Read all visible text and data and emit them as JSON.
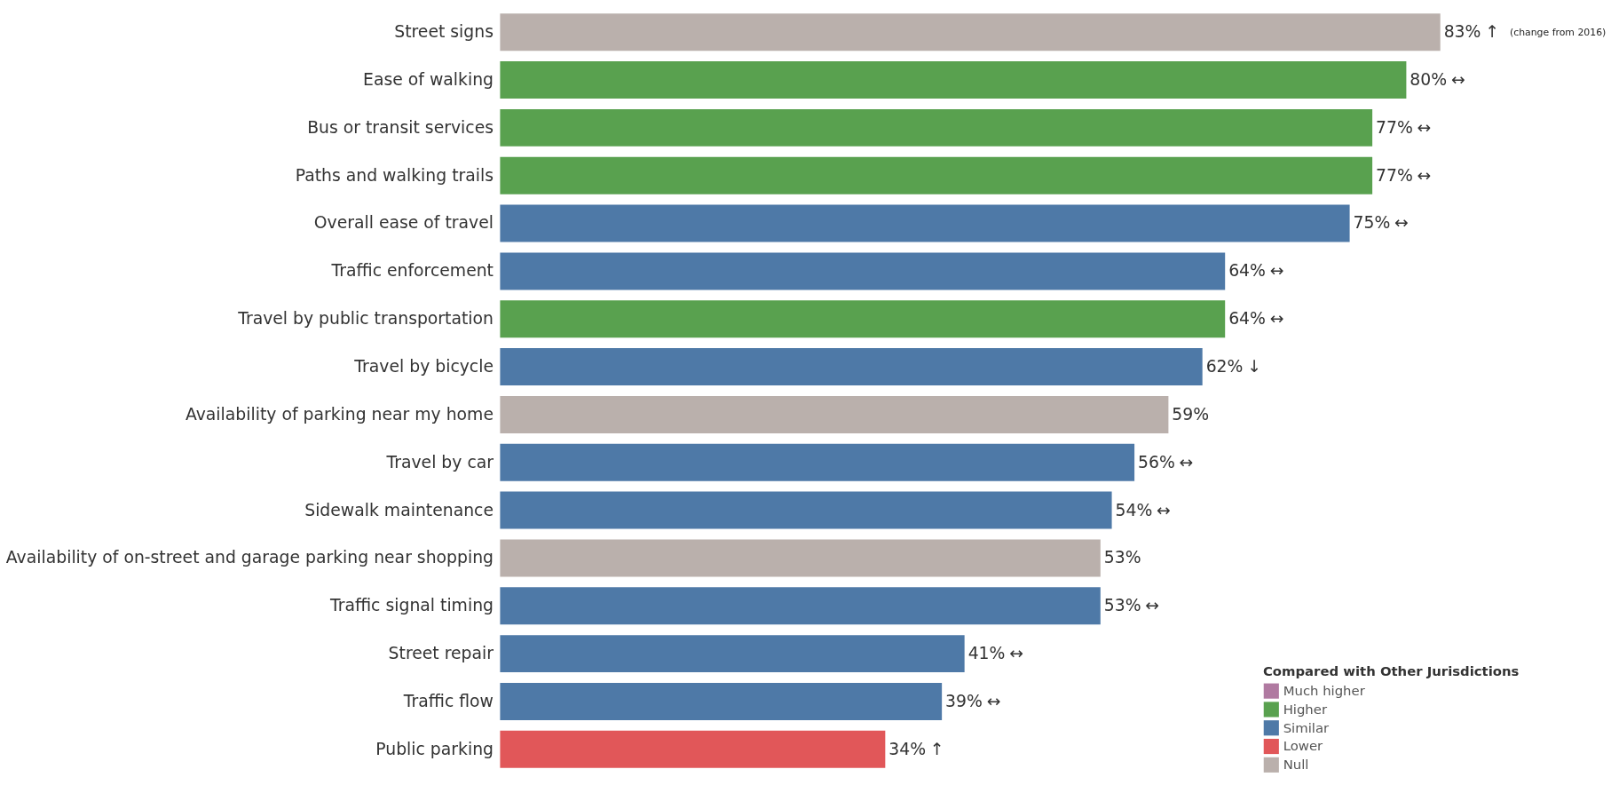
{
  "chart_data": {
    "type": "bar",
    "orientation": "horizontal",
    "legend_title": "Compared with Other Jurisdictions",
    "legend": "bottom right",
    "grid": false,
    "categories": [
      "Street signs",
      "Ease of walking",
      "Bus or transit services",
      "Paths and walking trails",
      "Overall ease of travel",
      "Traffic enforcement",
      "Travel by public transportation",
      "Travel by bicycle",
      "Availability of parking near my home",
      "Travel by car",
      "Sidewalk maintenance",
      "Availability of on-street and garage parking near shopping",
      "Traffic signal timing",
      "Street repair",
      "Traffic flow",
      "Public parking"
    ],
    "series": [
      {
        "name": "Much higher",
        "color": "#b07aa1",
        "values": [
          null,
          null,
          null,
          null,
          null,
          null,
          null,
          null,
          null,
          null,
          null,
          null,
          null,
          null,
          null,
          null
        ]
      },
      {
        "name": "Higher",
        "color": "#59a14f",
        "values": [
          null,
          80,
          77,
          77,
          null,
          null,
          64,
          null,
          null,
          null,
          null,
          null,
          null,
          null,
          null,
          null
        ],
        "value_labels": [
          null,
          "80%",
          "77%",
          "77%",
          null,
          null,
          "64%",
          null,
          null,
          null,
          null,
          null,
          null,
          null,
          null,
          null
        ]
      },
      {
        "name": "Similar",
        "color": "#4e79a7",
        "values": [
          null,
          null,
          null,
          null,
          75,
          64,
          null,
          62,
          null,
          56,
          54,
          null,
          53,
          41,
          39,
          null
        ],
        "value_labels": [
          null,
          null,
          null,
          null,
          "75%",
          "64%",
          null,
          "62%",
          null,
          "56%",
          "54%",
          null,
          "53%",
          "41%",
          "39%",
          null
        ]
      },
      {
        "name": "Lower",
        "color": "#e15759",
        "values": [
          null,
          null,
          null,
          null,
          null,
          null,
          null,
          null,
          null,
          null,
          null,
          null,
          null,
          null,
          null,
          34
        ],
        "value_labels": [
          null,
          null,
          null,
          null,
          null,
          null,
          null,
          null,
          null,
          null,
          null,
          null,
          null,
          null,
          null,
          "34%"
        ]
      },
      {
        "name": "Null",
        "color": "#bab0ac",
        "values": [
          83,
          null,
          null,
          null,
          null,
          null,
          null,
          null,
          59,
          null,
          null,
          53,
          null,
          null,
          null,
          null
        ],
        "value_labels": [
          "83%",
          null,
          null,
          null,
          null,
          null,
          null,
          null,
          "59%",
          null,
          null,
          "53%",
          null,
          null,
          null,
          null
        ]
      }
    ],
    "annotations": [
      {
        "text": "↑",
        "x": 83,
        "y": "Street signs"
      },
      {
        "text": "↔",
        "x": 80,
        "y": "Ease of walking"
      },
      {
        "text": "↔",
        "x": 77,
        "y": "Bus or transit services"
      },
      {
        "text": "↔",
        "x": 77,
        "y": "Paths and walking trails"
      },
      {
        "text": "↔",
        "x": 75,
        "y": "Overall ease of travel"
      },
      {
        "text": "↔",
        "x": 64,
        "y": "Traffic enforcement"
      },
      {
        "text": "↔",
        "x": 64,
        "y": "Travel by public transportation"
      },
      {
        "text": "↓",
        "x": 62,
        "y": "Travel by bicycle"
      },
      {
        "text": "↔",
        "x": 56,
        "y": "Travel by car"
      },
      {
        "text": "↔",
        "x": 54,
        "y": "Sidewalk maintenance"
      },
      {
        "text": "↔",
        "x": 53,
        "y": "Traffic signal timing"
      },
      {
        "text": "↔",
        "x": 41,
        "y": "Street repair"
      },
      {
        "text": "↔",
        "x": 39,
        "y": "Traffic flow"
      },
      {
        "text": "↑",
        "x": 34,
        "y": "Public parking"
      },
      "(change from 2016)"
    ]
  }
}
